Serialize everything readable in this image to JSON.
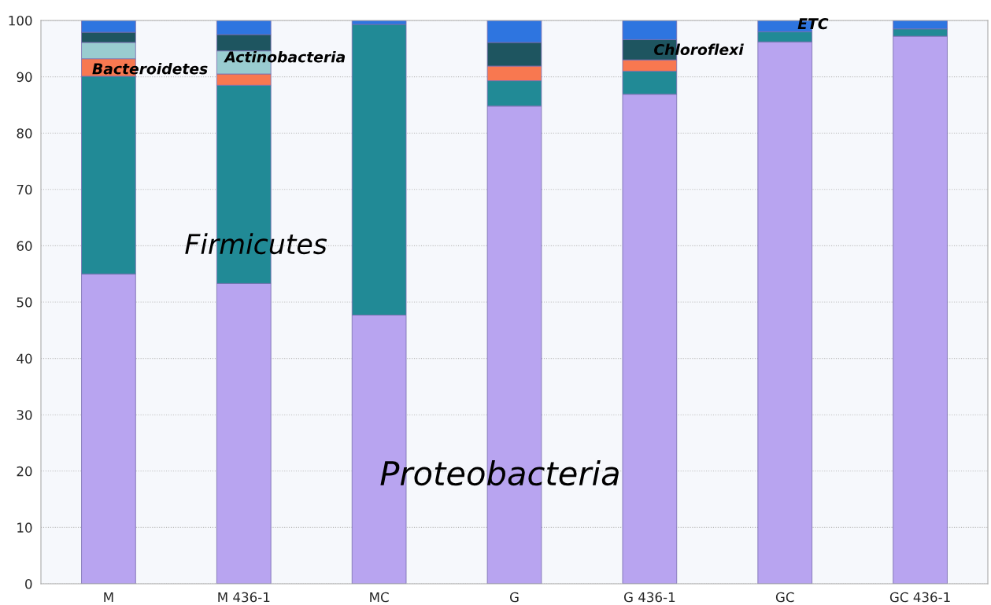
{
  "chart_data": {
    "type": "bar",
    "stacked": true,
    "categories": [
      "M",
      "M 436-1",
      "MC",
      "G",
      "G 436-1",
      "GC",
      "GC 436-1"
    ],
    "series": [
      {
        "color": "#b8a4f0",
        "values": [
          55,
          53.3,
          47.7,
          84.8,
          86.9,
          96.2,
          97.2
        ]
      },
      {
        "color": "#218a96",
        "values": [
          35.1,
          35.2,
          51.6,
          4.5,
          4.1,
          1.8,
          1.3
        ]
      },
      {
        "color": "#f87850",
        "values": [
          3.1,
          2.0,
          null,
          2.6,
          2.0,
          null,
          null
        ]
      },
      {
        "color": "#99ccd0",
        "values": [
          2.9,
          4.1,
          null,
          null,
          null,
          null,
          null
        ]
      },
      {
        "color": "#1e5560",
        "values": [
          1.8,
          2.9,
          null,
          4.2,
          3.6,
          null,
          null
        ]
      },
      {
        "color": "#2e75e0",
        "values": [
          2.1,
          2.5,
          0.7,
          3.9,
          3.4,
          2.0,
          1.5
        ]
      }
    ],
    "ylim": [
      0,
      100
    ],
    "yticks": [
      0,
      10,
      20,
      30,
      40,
      50,
      60,
      70,
      80,
      90,
      100
    ],
    "grid": "y",
    "annotations": [
      "Proteobacteria",
      "Firmicutes",
      "Bacteroidetes",
      "Actinobacteria",
      "Chloroflexi",
      "ETC"
    ]
  }
}
